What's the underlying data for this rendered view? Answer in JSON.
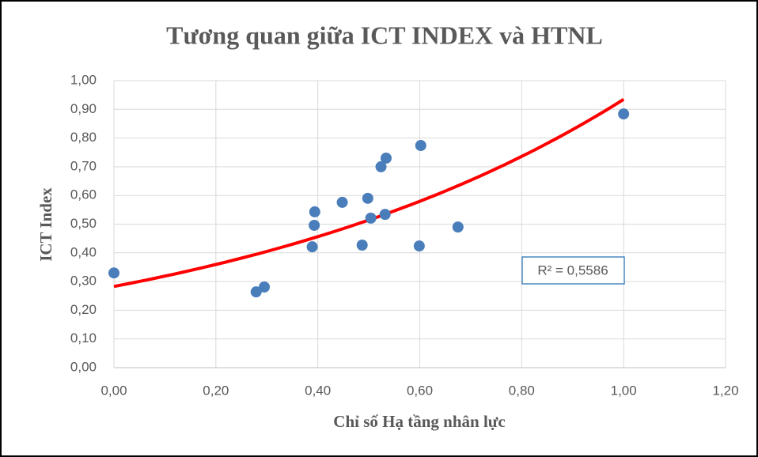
{
  "chart_data": {
    "type": "scatter",
    "title": "Tương quan giữa ICT INDEX và HTNL",
    "x_label": "Chỉ số Hạ tầng nhân lực",
    "y_label": "ICT Index",
    "series": [
      {
        "color": "#4a7ebb",
        "x": [
          0.0,
          0.279,
          0.295,
          0.389,
          0.393,
          0.394,
          0.448,
          0.487,
          0.498,
          0.504,
          0.524,
          0.534,
          0.532,
          0.599,
          0.602,
          0.675,
          1.0
        ],
        "values": [
          0.33,
          0.264,
          0.281,
          0.421,
          0.496,
          0.543,
          0.576,
          0.427,
          0.59,
          0.521,
          0.7,
          0.73,
          0.534,
          0.424,
          0.774,
          0.49,
          0.884
        ]
      }
    ],
    "trendline": {
      "type": "exponential",
      "color": "#ff0000",
      "label": "R² = 0,5586"
    },
    "xlim": [
      0,
      1.2
    ],
    "xticks": [
      {
        "value": 0,
        "label": "0,00"
      },
      {
        "value": 0.2,
        "label": "0,20"
      },
      {
        "value": 0.4,
        "label": "0,40"
      },
      {
        "value": 0.6,
        "label": "0,60"
      },
      {
        "value": 0.8,
        "label": "0,80"
      },
      {
        "value": 1,
        "label": "1,00"
      },
      {
        "value": 1.2,
        "label": "1,20"
      }
    ],
    "ylim": [
      0,
      1
    ],
    "yticks": [
      {
        "value": 0,
        "label": "0,00"
      },
      {
        "value": 0.1,
        "label": "0,10"
      },
      {
        "value": 0.2,
        "label": "0,20"
      },
      {
        "value": 0.3,
        "label": "0,30"
      },
      {
        "value": 0.4,
        "label": "0,40"
      },
      {
        "value": 0.5,
        "label": "0,50"
      },
      {
        "value": 0.6,
        "label": "0,60"
      },
      {
        "value": 0.7,
        "label": "0,70"
      },
      {
        "value": 0.8,
        "label": "0,80"
      },
      {
        "value": 0.9,
        "label": "0,90"
      },
      {
        "value": 1,
        "label": "1,00"
      }
    ],
    "grid": true
  }
}
